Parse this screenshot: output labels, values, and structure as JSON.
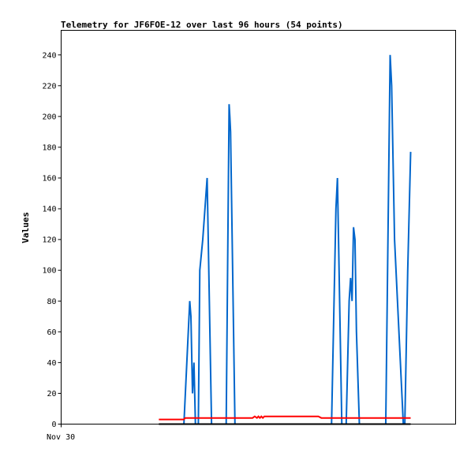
{
  "chart_data": {
    "type": "line",
    "title": "Telemetry for JF6FOE-12 over last 96 hours (54 points)",
    "xlabel": "",
    "ylabel": "Values",
    "x_tick_labels": [
      "Nov 30"
    ],
    "y_ticks": [
      0,
      20,
      40,
      60,
      80,
      100,
      120,
      140,
      160,
      180,
      200,
      220,
      240
    ],
    "ylim": [
      0,
      256
    ],
    "grid": false,
    "legend": "none",
    "series": [
      {
        "color": "#0066cc",
        "points": [
          [
            0.3034,
            0
          ],
          [
            0.3112,
            0
          ],
          [
            0.3223,
            60
          ],
          [
            0.326,
            80
          ],
          [
            0.329,
            70
          ],
          [
            0.333,
            20
          ],
          [
            0.3367,
            40
          ],
          [
            0.3404,
            0
          ],
          [
            0.3478,
            0
          ],
          [
            0.3515,
            100
          ],
          [
            0.359,
            120
          ],
          [
            0.3701,
            160
          ],
          [
            0.3813,
            0
          ],
          [
            0.4184,
            0
          ],
          [
            0.4258,
            208
          ],
          [
            0.4276,
            200
          ],
          [
            0.4295,
            190
          ],
          [
            0.4406,
            0
          ],
          [
            0.6855,
            0
          ],
          [
            0.6966,
            140
          ],
          [
            0.7004,
            160
          ],
          [
            0.7115,
            0
          ],
          [
            0.7226,
            0
          ],
          [
            0.7301,
            80
          ],
          [
            0.7338,
            95
          ],
          [
            0.7375,
            80
          ],
          [
            0.7412,
            128
          ],
          [
            0.7449,
            120
          ],
          [
            0.7486,
            60
          ],
          [
            0.756,
            0
          ],
          [
            0.8229,
            0
          ],
          [
            0.834,
            240
          ],
          [
            0.8378,
            220
          ],
          [
            0.8452,
            120
          ],
          [
            0.8526,
            80
          ],
          [
            0.8674,
            0
          ],
          [
            0.8712,
            0
          ],
          [
            0.8786,
            100
          ],
          [
            0.886,
            177
          ]
        ]
      },
      {
        "color": "#ff0000",
        "points": [
          [
            0.2477,
            3
          ],
          [
            0.3107,
            3
          ],
          [
            0.3144,
            4
          ],
          [
            0.4852,
            4
          ],
          [
            0.4908,
            5
          ],
          [
            0.4964,
            4
          ],
          [
            0.5001,
            5
          ],
          [
            0.5038,
            4
          ],
          [
            0.5075,
            5
          ],
          [
            0.5113,
            4
          ],
          [
            0.515,
            5
          ],
          [
            0.6521,
            5
          ],
          [
            0.6596,
            4
          ],
          [
            0.886,
            4
          ]
        ]
      },
      {
        "color": "#000000",
        "points": [
          [
            0.2477,
            0
          ],
          [
            0.886,
            0
          ]
        ]
      }
    ]
  }
}
